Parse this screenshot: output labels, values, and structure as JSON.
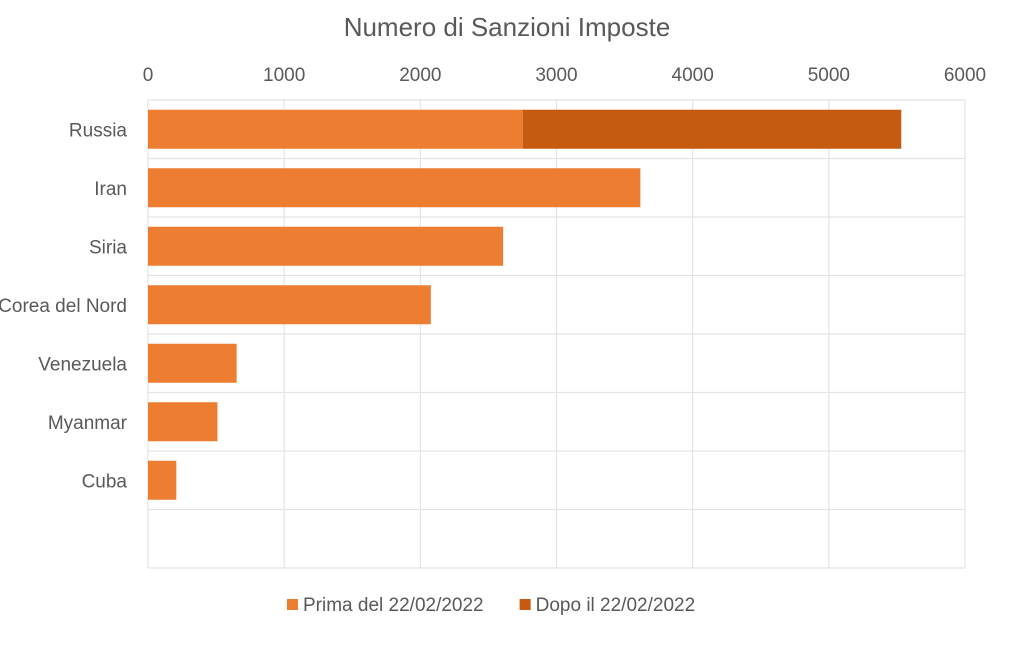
{
  "chart_data": {
    "type": "bar",
    "orientation": "horizontal",
    "stacked": true,
    "title": "Numero di Sanzioni Imposte",
    "xlabel": "",
    "ylabel": "",
    "xlim": [
      0,
      6000
    ],
    "x_ticks": [
      "0",
      "1000",
      "2000",
      "3000",
      "4000",
      "5000",
      "6000"
    ],
    "x_axis_position": "top",
    "grid": true,
    "legend_position": "bottom",
    "categories": [
      "Russia",
      "Iran",
      "Siria",
      "Corea del Nord",
      "Venezuela",
      "Myanmar",
      "Cuba"
    ],
    "series": [
      {
        "name": "Prima del 22/02/2022",
        "color": "#ED7D31",
        "values": [
          2754,
          3616,
          2608,
          2077,
          651,
          510,
          208
        ]
      },
      {
        "name": "Dopo il 22/02/2022",
        "color": "#C55A11",
        "values": [
          2778,
          0,
          0,
          0,
          0,
          0,
          0
        ]
      }
    ]
  }
}
